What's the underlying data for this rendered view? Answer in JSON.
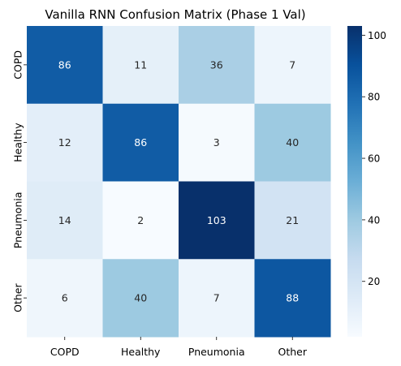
{
  "chart_data": {
    "type": "heatmap",
    "title": "Vanilla RNN Confusion Matrix (Phase 1 Val)",
    "x_categories": [
      "COPD",
      "Healthy",
      "Pneumonia",
      "Other"
    ],
    "y_categories": [
      "COPD",
      "Healthy",
      "Pneumonia",
      "Other"
    ],
    "values": [
      [
        86,
        11,
        36,
        7
      ],
      [
        12,
        86,
        3,
        40
      ],
      [
        14,
        2,
        103,
        21
      ],
      [
        6,
        40,
        7,
        88
      ]
    ],
    "xlabel": "",
    "ylabel": "",
    "colormap": "Blues",
    "value_range": [
      2,
      103
    ],
    "colorbar": {
      "ticks": [
        20,
        40,
        60,
        80,
        100
      ],
      "tick_labels": [
        "20",
        "40",
        "60",
        "80",
        "100"
      ]
    },
    "grid": false
  }
}
